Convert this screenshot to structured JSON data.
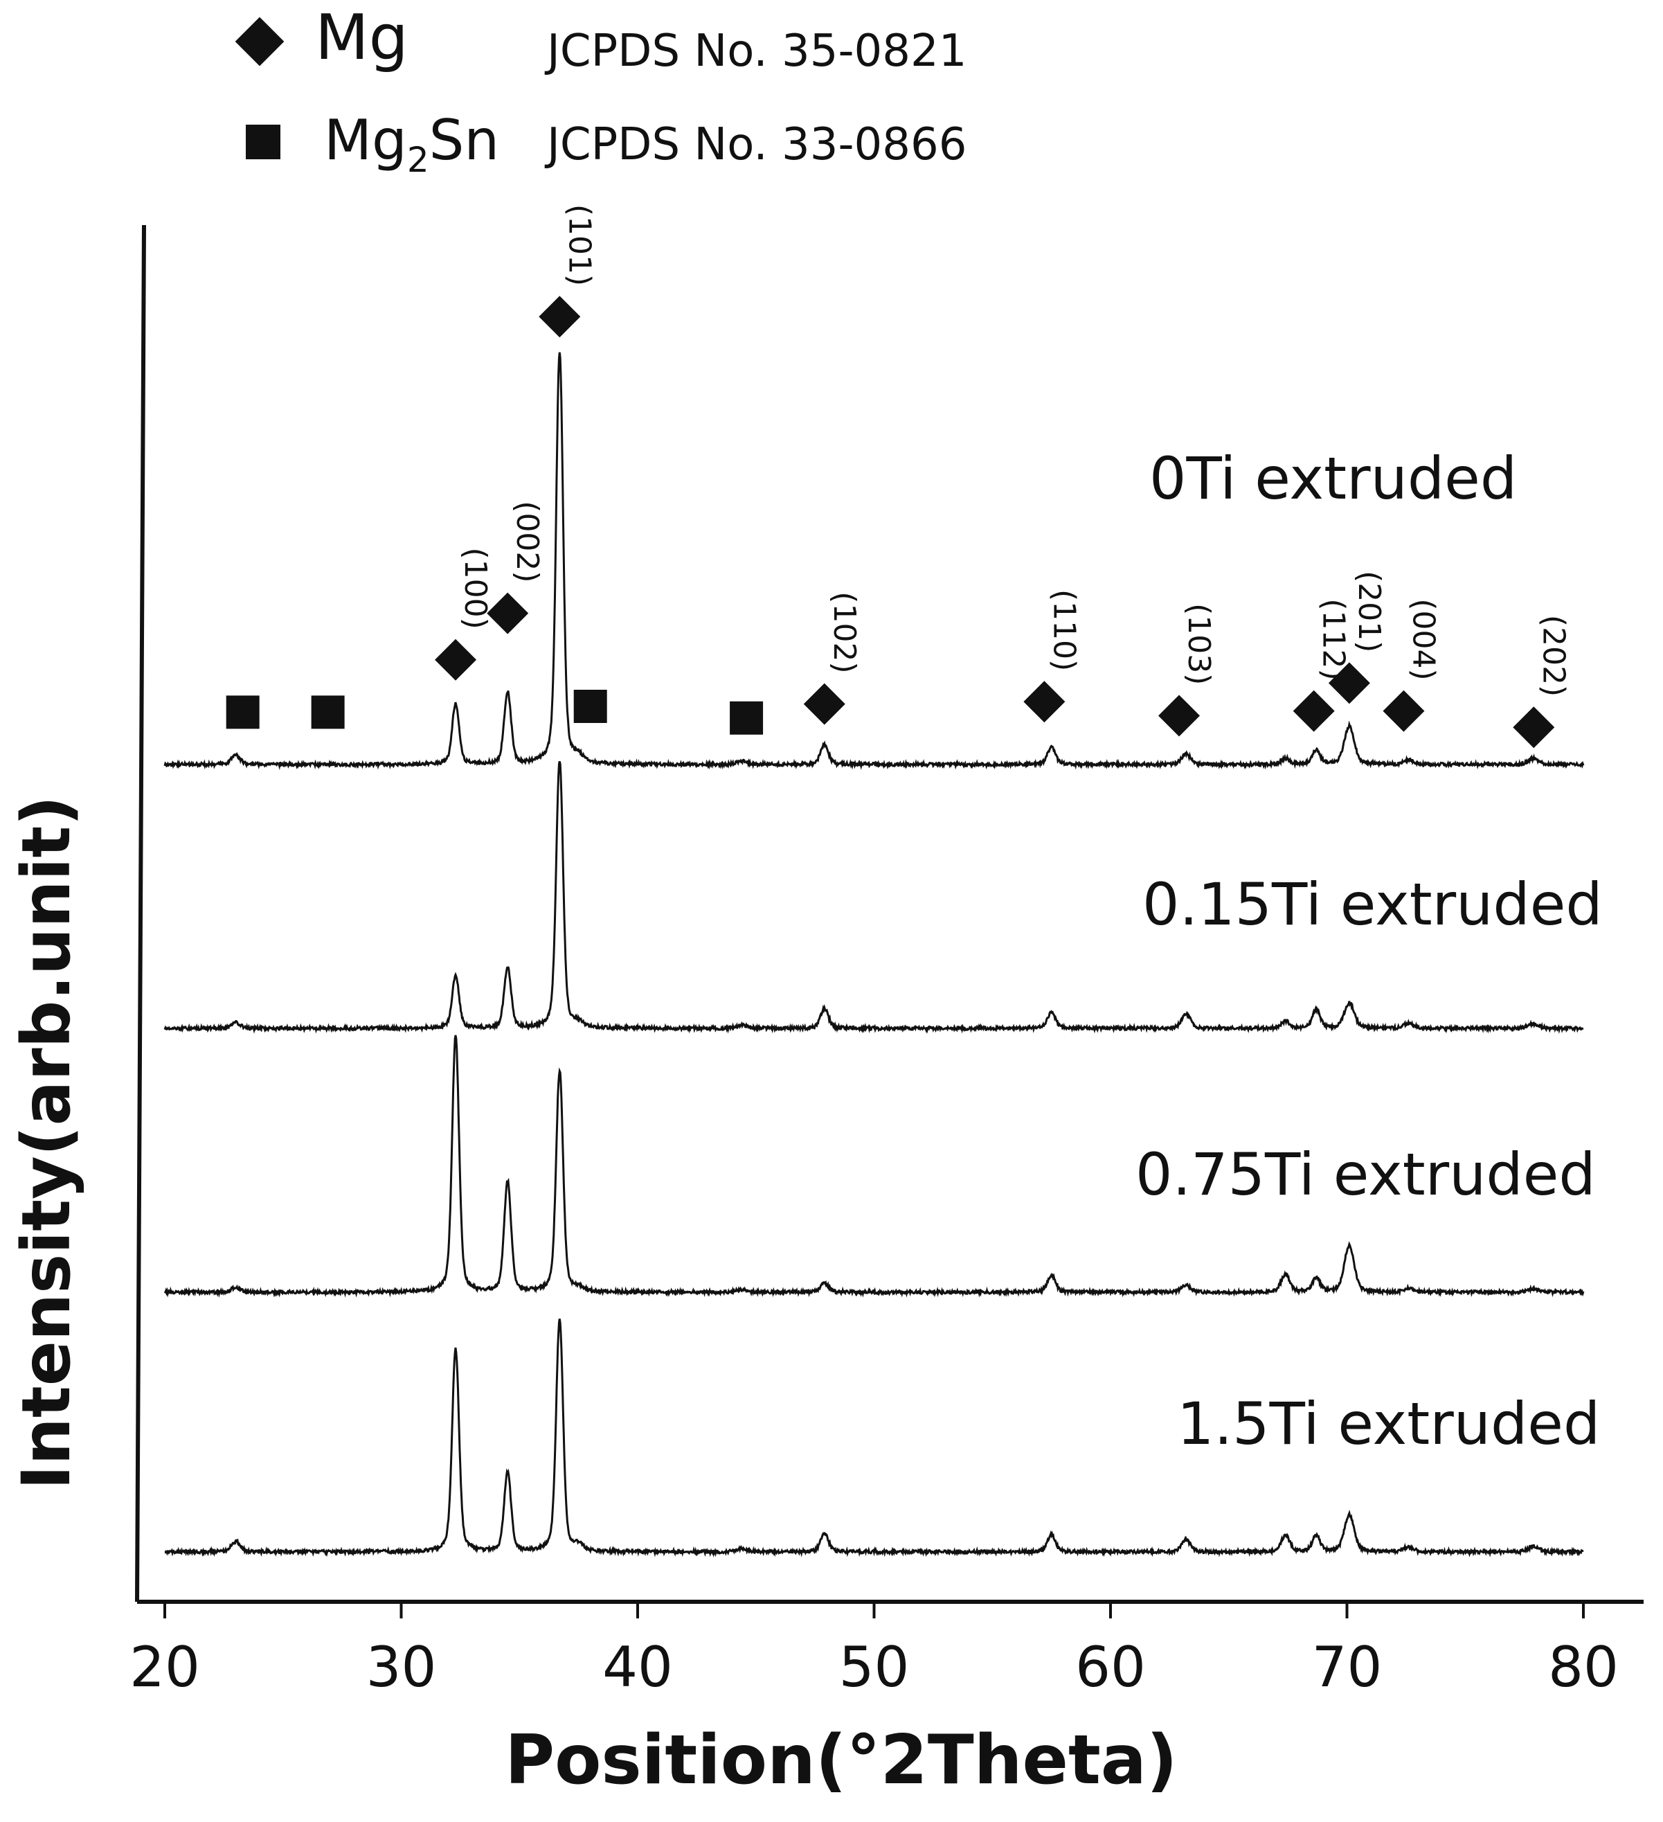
{
  "chart_data": {
    "type": "line",
    "title": "",
    "xlabel": "Position(°2Theta)",
    "ylabel": "Intensity(arb.unit)",
    "xlim": [
      19,
      83
    ],
    "x_ticks": [
      20,
      30,
      40,
      50,
      60,
      70,
      80
    ],
    "x_tick_labels": [
      "20",
      "30",
      "40",
      "50",
      "60",
      "70",
      "80"
    ],
    "legend": {
      "placement": "top-left",
      "entries": [
        {
          "marker": "diamond",
          "label": "Mg",
          "reference": "JCPDS No. 35-0821"
        },
        {
          "marker": "square",
          "label": "Mg",
          "subscript": "2",
          "label_suffix": "Sn",
          "reference": "JCPDS No. 33-0866"
        }
      ]
    },
    "peaks": [
      {
        "x": 23.0,
        "w": 0.18
      },
      {
        "x": 32.3,
        "w": 0.14
      },
      {
        "x": 34.5,
        "w": 0.14
      },
      {
        "x": 36.7,
        "w": 0.14
      },
      {
        "x": 37.5,
        "w": 0.2
      },
      {
        "x": 44.4,
        "w": 0.2
      },
      {
        "x": 47.9,
        "w": 0.16
      },
      {
        "x": 57.5,
        "w": 0.16
      },
      {
        "x": 63.2,
        "w": 0.18
      },
      {
        "x": 67.4,
        "w": 0.18
      },
      {
        "x": 68.7,
        "w": 0.16
      },
      {
        "x": 70.1,
        "w": 0.2
      },
      {
        "x": 72.6,
        "w": 0.2
      },
      {
        "x": 77.9,
        "w": 0.2
      }
    ],
    "series": [
      {
        "name": "0Ti extruded",
        "intensity": [
          0.08,
          0.52,
          0.62,
          3.55,
          0.05,
          0.03,
          0.17,
          0.15,
          0.09,
          0.05,
          0.12,
          0.33,
          0.04,
          0.05
        ]
      },
      {
        "name": "0.15Ti extruded",
        "intensity": [
          0.05,
          0.45,
          0.52,
          2.3,
          0.04,
          0.03,
          0.17,
          0.14,
          0.12,
          0.06,
          0.16,
          0.22,
          0.04,
          0.04
        ]
      },
      {
        "name": "0.75Ti extruded",
        "intensity": [
          0.04,
          2.2,
          0.95,
          1.9,
          0.03,
          0.02,
          0.08,
          0.15,
          0.06,
          0.15,
          0.12,
          0.4,
          0.03,
          0.03
        ]
      },
      {
        "name": "1.5Ti extruded",
        "intensity": [
          0.09,
          1.75,
          0.68,
          2.0,
          0.05,
          0.03,
          0.16,
          0.15,
          0.1,
          0.14,
          0.14,
          0.32,
          0.04,
          0.05
        ]
      }
    ],
    "annotations": {
      "mg_markers": [
        {
          "x": 32.3,
          "level": 0.9,
          "label": "(100)"
        },
        {
          "x": 34.5,
          "level": 1.3,
          "label": "(002)"
        },
        {
          "x": 36.7,
          "level": 3.85,
          "label": "(101)"
        },
        {
          "x": 47.9,
          "level": 0.52,
          "label": "(102)"
        },
        {
          "x": 57.2,
          "level": 0.54,
          "label": "(110)"
        },
        {
          "x": 62.9,
          "level": 0.42,
          "label": "(103)"
        },
        {
          "x": 68.6,
          "level": 0.46,
          "label": "(112)"
        },
        {
          "x": 70.1,
          "level": 0.7,
          "label": "(201)"
        },
        {
          "x": 72.4,
          "level": 0.46,
          "label": "(004)"
        },
        {
          "x": 77.9,
          "level": 0.32,
          "label": "(202)"
        }
      ],
      "mg2sn_markers": [
        {
          "x": 23.3,
          "level": 0.45
        },
        {
          "x": 26.9,
          "level": 0.45
        },
        {
          "x": 38.0,
          "level": 0.5
        },
        {
          "x": 44.6,
          "level": 0.4
        }
      ]
    }
  }
}
